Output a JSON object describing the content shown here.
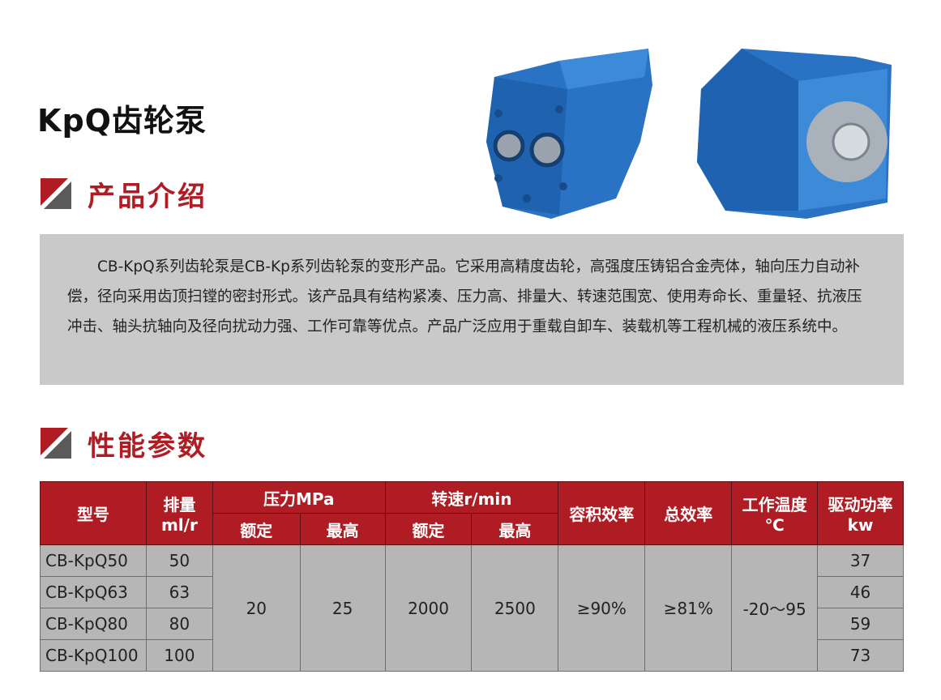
{
  "title": "KpQ齿轮泵",
  "sections": {
    "intro": "产品介绍",
    "params": "性能参数"
  },
  "intro_text": "CB-KpQ系列齿轮泵是CB-Kp系列齿轮泵的变形产品。它采用高精度齿轮，高强度压铸铝合金壳体，轴向压力自动补偿，径向采用齿顶扫镗的密封形式。该产品具有结构紧凑、压力高、排量大、转速范围宽、使用寿命长、重量轻、抗液压冲击、轴头抗轴向及径向扰动力强、工作可靠等优点。产品广泛应用于重载自卸车、装载机等工程机械的液压系统中。",
  "colors": {
    "accent": "#b01c24",
    "pump": "#2a73c4"
  },
  "table": {
    "headers": {
      "model": "型号",
      "displacement": "排量",
      "displacement_unit": "ml/r",
      "pressure": "压力MPa",
      "speed": "转速r/min",
      "rated": "额定",
      "max": "最高",
      "vol_eff": "容积效率",
      "total_eff": "总效率",
      "temp": "工作温度",
      "temp_unit": "℃",
      "power": "驱动功率",
      "power_unit": "kw"
    },
    "rows": [
      {
        "model": "CB-KpQ50",
        "displacement": "50",
        "power": "37"
      },
      {
        "model": "CB-KpQ63",
        "displacement": "63",
        "power": "46"
      },
      {
        "model": "CB-KpQ80",
        "displacement": "80",
        "power": "59"
      },
      {
        "model": "CB-KpQ100",
        "displacement": "100",
        "power": "73"
      }
    ],
    "shared": {
      "pressure_rated": "20",
      "pressure_max": "25",
      "speed_rated": "2000",
      "speed_max": "2500",
      "vol_eff": "≥90%",
      "total_eff": "≥81%",
      "temp": "-20～95"
    }
  }
}
